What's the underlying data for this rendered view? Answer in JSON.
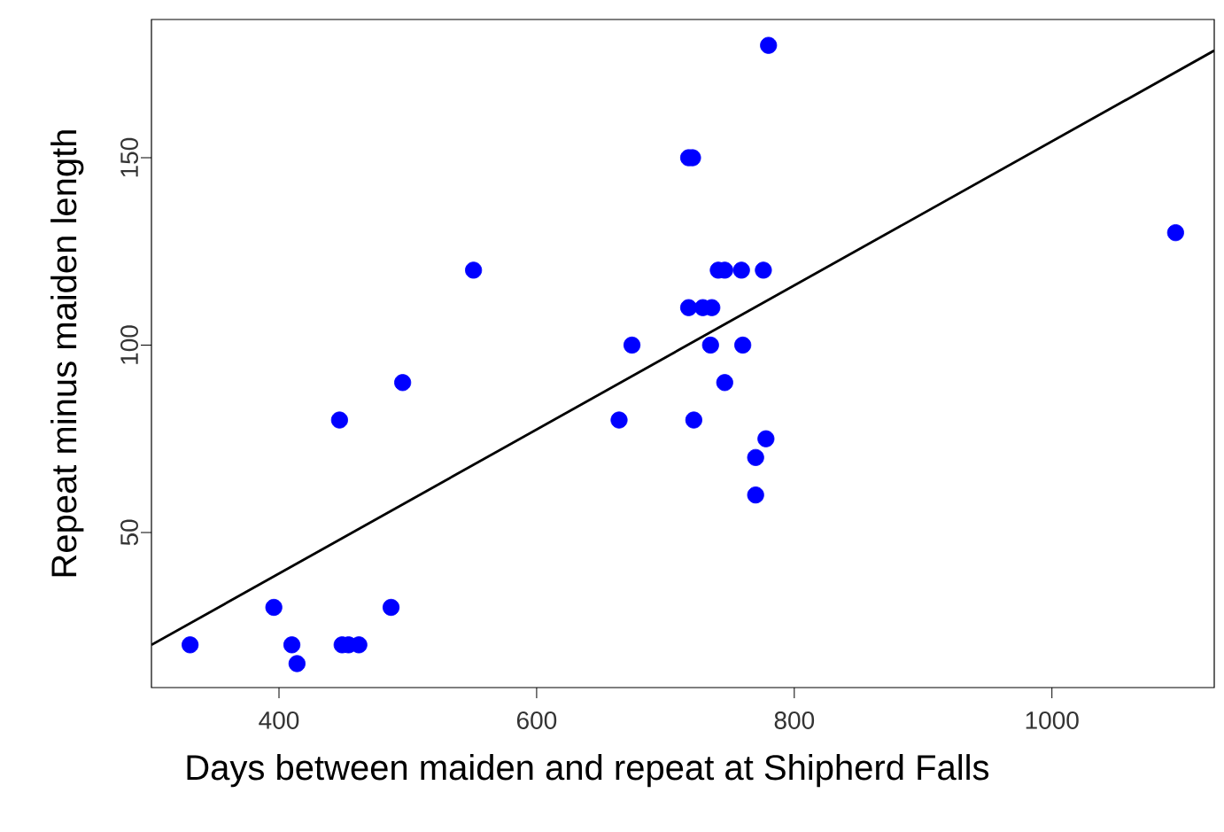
{
  "chart_data": {
    "type": "scatter",
    "xlabel": "Days between maiden and repeat at Shipherd Falls",
    "ylabel": "Repeat minus maiden length",
    "xlim": [
      301,
      1126
    ],
    "ylim": [
      8.6,
      186.9
    ],
    "xticks": [
      400,
      600,
      800,
      1000
    ],
    "yticks": [
      50,
      100,
      150
    ],
    "grid": false,
    "series": [
      {
        "color": "#0000ff",
        "marker": "circle",
        "x": [
          331,
          396,
          410,
          414,
          447,
          449,
          454,
          462,
          487,
          496,
          551,
          664,
          674,
          718,
          721,
          718,
          722,
          729,
          736,
          735,
          741,
          746,
          746,
          759,
          760,
          770,
          770,
          776,
          778,
          780,
          1096
        ],
        "values": [
          20,
          30,
          20,
          15,
          80,
          20,
          20,
          20,
          30,
          90,
          120,
          80,
          100,
          150,
          150,
          110,
          80,
          110,
          110,
          100,
          120,
          120,
          90,
          120,
          100,
          70,
          60,
          120,
          75,
          180,
          130
        ]
      },
      {
        "type": "line",
        "color": "#000000",
        "marker": "none",
        "line_style": "solid",
        "x": [
          301,
          1126
        ],
        "values": [
          20,
          178.6
        ]
      }
    ]
  }
}
